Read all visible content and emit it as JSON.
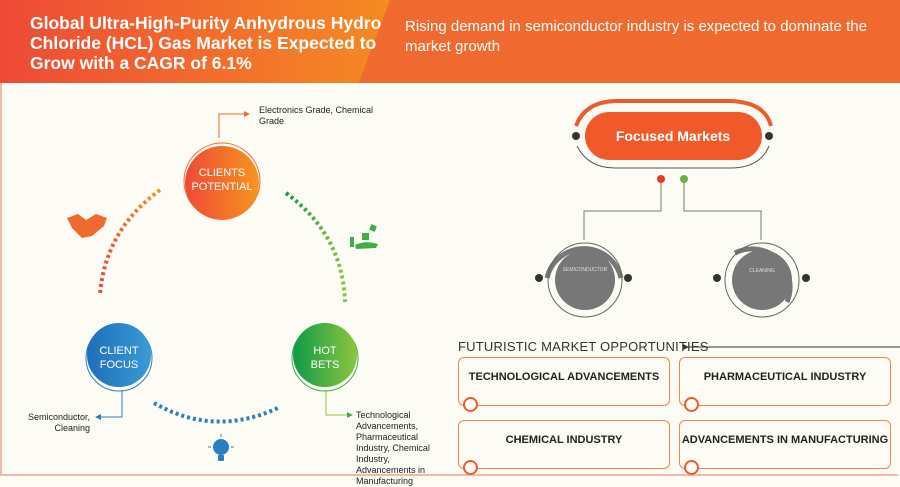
{
  "header": {
    "title": "Global Ultra-High-Purity Anhydrous Hydro Chloride (HCL) Gas Market is Expected to Grow with a CAGR of 6.1%",
    "subtitle": "Rising demand in semiconductor industry is expected to dominate the market growth"
  },
  "cycle": {
    "clients_potential": {
      "line1": "CLIENTS",
      "line2": "POTENTIAL",
      "note": "Electronics Grade, Chemical Grade"
    },
    "client_focus": {
      "line1": "CLIENT",
      "line2": "FOCUS",
      "note": "Semiconductor, Cleaning"
    },
    "hot_bets": {
      "line1": "HOT",
      "line2": "BETS",
      "note": "Technological Advancements, Pharmaceutical Industry, Chemical Industry, Advancements in Manufacturing"
    },
    "icons": [
      "handshake-icon",
      "hand-dice-icon",
      "lightbulb-icon"
    ]
  },
  "focused_markets": {
    "title": "Focused Markets",
    "items": [
      "SEMICONDUCTOR",
      "CLEANING"
    ]
  },
  "opportunities": {
    "title": "FUTURISTIC MARKET OPPORTUNITIES",
    "items": [
      "TECHNOLOGICAL ADVANCEMENTS",
      "PHARMACEUTICAL INDUSTRY",
      "CHEMICAL INDUSTRY",
      "ADVANCEMENTS IN MANUFACTURING"
    ]
  },
  "colors": {
    "orange": "#f0692e",
    "red": "#ee4a37",
    "green": "#3fae49",
    "blue": "#2a7fc4",
    "gray": "#7a7a7a"
  }
}
